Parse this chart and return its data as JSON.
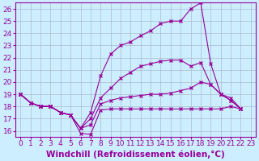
{
  "background_color": "#cceeff",
  "line_color": "#990099",
  "xlim": [
    -0.5,
    23.5
  ],
  "ylim": [
    15.5,
    26.5
  ],
  "yticks": [
    16,
    17,
    18,
    19,
    20,
    21,
    22,
    23,
    24,
    25,
    26
  ],
  "xticks": [
    0,
    1,
    2,
    3,
    4,
    5,
    6,
    7,
    8,
    9,
    10,
    11,
    12,
    13,
    14,
    15,
    16,
    17,
    18,
    19,
    20,
    21,
    22,
    23
  ],
  "xlabel": "Windchill (Refroidissement éolien,°C)",
  "tick_label_fontsize": 6.5,
  "xlabel_fontsize": 7.5,
  "grid_color": "#aabbcc",
  "line1": [
    19.0,
    18.3,
    18.0,
    18.0,
    17.5,
    17.3,
    15.8,
    15.7,
    17.7,
    17.8,
    17.8,
    17.8,
    17.8,
    17.8,
    17.8,
    17.8,
    17.8,
    17.8,
    17.8,
    17.8,
    17.8,
    18.0,
    17.8
  ],
  "line2": [
    19.0,
    18.3,
    18.0,
    18.0,
    17.5,
    17.3,
    16.2,
    16.5,
    18.2,
    18.5,
    18.7,
    18.8,
    18.9,
    19.0,
    19.0,
    19.1,
    19.3,
    19.5,
    20.0,
    19.8,
    19.0,
    18.7,
    17.8
  ],
  "line3": [
    19.0,
    18.3,
    18.0,
    18.0,
    17.5,
    17.3,
    16.2,
    17.0,
    18.7,
    19.5,
    20.3,
    20.8,
    21.3,
    21.5,
    21.7,
    21.8,
    21.8,
    21.3,
    21.6,
    19.8,
    19.0,
    18.5,
    17.8
  ],
  "line4": [
    19.0,
    18.3,
    18.0,
    18.0,
    17.5,
    17.3,
    16.2,
    17.5,
    20.5,
    22.3,
    23.0,
    23.3,
    23.8,
    24.2,
    24.8,
    25.0,
    25.0,
    26.0,
    26.5,
    21.5,
    19.0,
    18.5,
    17.8
  ]
}
